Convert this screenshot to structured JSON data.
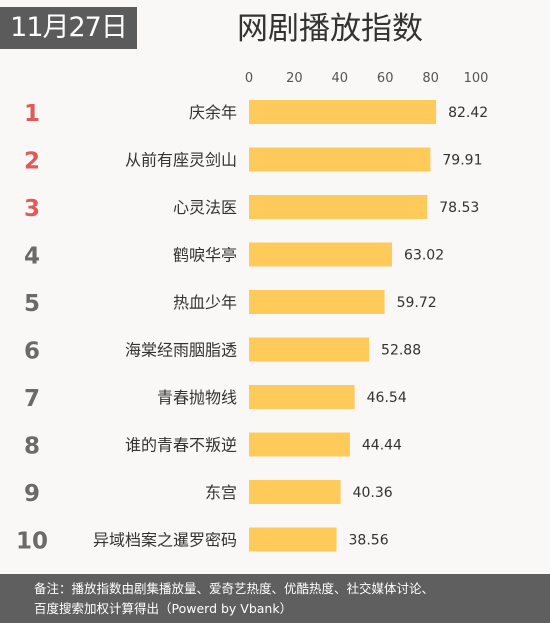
{
  "header": {
    "date": "11月27日",
    "title": "网剧播放指数"
  },
  "colors": {
    "bar": "#fecb5a",
    "rank_top": "#e05a5a",
    "rank_rest": "#6a6a6a",
    "text": "#333333"
  },
  "chart_data": {
    "type": "bar",
    "orientation": "horizontal",
    "title": "网剧播放指数",
    "xlim": [
      0,
      100
    ],
    "x_ticks": [
      0,
      20,
      40,
      60,
      80,
      100
    ],
    "grid": false,
    "legend": "none",
    "ranks": [
      "1",
      "2",
      "3",
      "4",
      "5",
      "6",
      "7",
      "8",
      "9",
      "10"
    ],
    "categories": [
      "庆余年",
      "从前有座灵剑山",
      "心灵法医",
      "鹤唳华亭",
      "热血少年",
      "海棠经雨胭脂透",
      "青春抛物线",
      "谁的青春不叛逆",
      "东宫",
      "异域档案之暹罗密码"
    ],
    "values": [
      82.42,
      79.91,
      78.53,
      63.02,
      59.72,
      52.88,
      46.54,
      44.44,
      40.36,
      38.56
    ]
  },
  "footer": {
    "line1": "备注：播放指数由剧集播放量、爱奇艺热度、优酷热度、社交媒体讨论、",
    "line2": "百度搜索加权计算得出（Powerd by Vbank）"
  }
}
